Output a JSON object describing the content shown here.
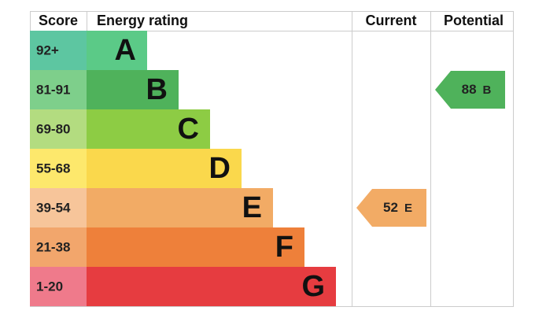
{
  "header": {
    "score": "Score",
    "rating": "Energy rating",
    "current": "Current",
    "potential": "Potential"
  },
  "bands": [
    {
      "score": "92+",
      "letter": "A",
      "score_color": "#5dc6a1",
      "color": "#5bca87"
    },
    {
      "score": "81-91",
      "letter": "B",
      "score_color": "#7ecf8b",
      "color": "#4fb25b"
    },
    {
      "score": "69-80",
      "letter": "C",
      "score_color": "#b3dc80",
      "color": "#8dcc44"
    },
    {
      "score": "55-68",
      "letter": "D",
      "score_color": "#fde86c",
      "color": "#fad84c"
    },
    {
      "score": "39-54",
      "letter": "E",
      "score_color": "#f7c59a",
      "color": "#f2ab65"
    },
    {
      "score": "21-38",
      "letter": "F",
      "score_color": "#f2a66c",
      "color": "#ee803a"
    },
    {
      "score": "1-20",
      "letter": "G",
      "score_color": "#ef7a8b",
      "color": "#e63c40"
    }
  ],
  "current": {
    "value": 52,
    "letter": "E"
  },
  "potential": {
    "value": 88,
    "letter": "B"
  }
}
